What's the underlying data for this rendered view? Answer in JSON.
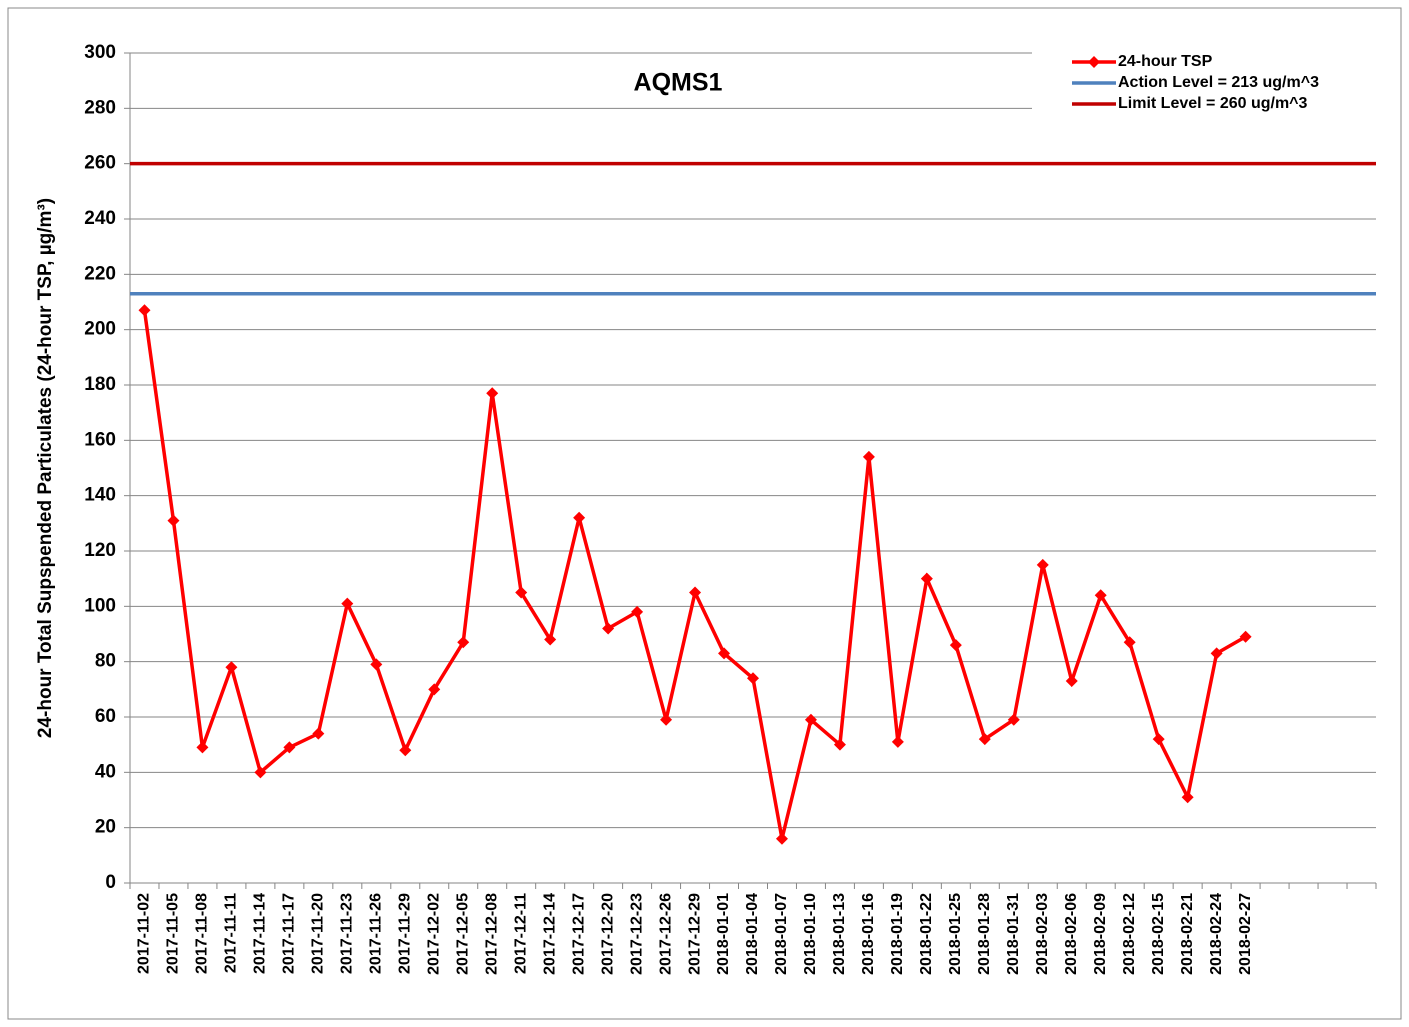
{
  "chart_data": {
    "type": "line",
    "title": "AQMS1",
    "y_label": "24-hour Total Supspended Particulates (24-hour TSP, µg/m³)",
    "categories": [
      "2017-11-02",
      "2017-11-05",
      "2017-11-08",
      "2017-11-11",
      "2017-11-14",
      "2017-11-17",
      "2017-11-20",
      "2017-11-23",
      "2017-11-26",
      "2017-11-29",
      "2017-12-02",
      "2017-12-05",
      "2017-12-08",
      "2017-12-11",
      "2017-12-14",
      "2017-12-17",
      "2017-12-20",
      "2017-12-23",
      "2017-12-26",
      "2017-12-29",
      "2018-01-01",
      "2018-01-04",
      "2018-01-07",
      "2018-01-10",
      "2018-01-13",
      "2018-01-16",
      "2018-01-19",
      "2018-01-22",
      "2018-01-25",
      "2018-01-28",
      "2018-01-31",
      "2018-02-03",
      "2018-02-06",
      "2018-02-09",
      "2018-02-12",
      "2018-02-15",
      "2018-02-21",
      "2018-02-24",
      "2018-02-27",
      null,
      null,
      null,
      null
    ],
    "series": [
      {
        "name": "24-hour TSP",
        "color": "#ff0000",
        "values": [
          207,
          131,
          49,
          78,
          40,
          49,
          54,
          101,
          79,
          48,
          70,
          87,
          177,
          105,
          88,
          132,
          92,
          98,
          59,
          105,
          83,
          74,
          16,
          59,
          50,
          154,
          51,
          110,
          86,
          52,
          59,
          115,
          73,
          104,
          87,
          52,
          31,
          83,
          89,
          null,
          null,
          null,
          null
        ]
      }
    ],
    "reference_lines": [
      {
        "name": "Action Level = 213 ug/m^3",
        "color": "#4f81bd",
        "value": 213
      },
      {
        "name": "Limit Level = 260 ug/m^3",
        "color": "#c00000",
        "value": 260
      }
    ],
    "ylim": [
      0,
      300
    ],
    "yticks": [
      0,
      20,
      40,
      60,
      80,
      100,
      120,
      140,
      160,
      180,
      200,
      220,
      240,
      260,
      280,
      300
    ],
    "grid": true,
    "legend": "top-right"
  }
}
